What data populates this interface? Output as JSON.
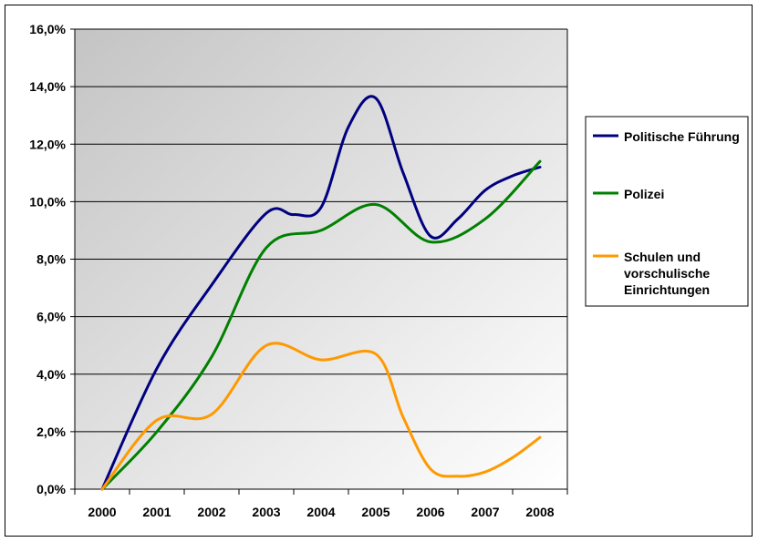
{
  "chart_data": {
    "type": "line",
    "categories": [
      "2000",
      "2001",
      "2002",
      "2003",
      "2004",
      "2005",
      "2006",
      "2007",
      "2008"
    ],
    "y_tick_labels": [
      "0,0%",
      "2,0%",
      "4,0%",
      "6,0%",
      "8,0%",
      "10,0%",
      "12,0%",
      "14,0%",
      "16,0%"
    ],
    "ylim": [
      0,
      16
    ],
    "grid": true,
    "legend_position": "right",
    "series": [
      {
        "name": "Politische Führung",
        "color": "#000080",
        "x": [
          2000,
          2001,
          2002,
          2003,
          2003.5,
          2004,
          2004.5,
          2005,
          2005.5,
          2006,
          2006.5,
          2007,
          2007.5,
          2008
        ],
        "values": [
          0.0,
          4.2,
          7.1,
          9.6,
          9.55,
          9.8,
          12.6,
          13.6,
          11.0,
          8.8,
          9.4,
          10.4,
          10.9,
          11.2
        ]
      },
      {
        "name": "Polizei",
        "color": "#008000",
        "x": [
          2000,
          2001,
          2002,
          2003,
          2004,
          2005,
          2006,
          2007,
          2008
        ],
        "values": [
          0.0,
          2.0,
          4.6,
          8.4,
          9.0,
          9.9,
          8.6,
          9.4,
          11.4
        ]
      },
      {
        "name": "Schulen und vorschulische Einrichtungen",
        "legend_lines": [
          "Schulen und",
          "vorschulische",
          "Einrichtungen"
        ],
        "color": "#FF9900",
        "x": [
          2000,
          2001,
          2002,
          2003,
          2004,
          2005,
          2005.5,
          2006,
          2006.5,
          2007,
          2007.5,
          2008
        ],
        "values": [
          0.0,
          2.4,
          2.6,
          5.0,
          4.5,
          4.7,
          2.5,
          0.7,
          0.45,
          0.6,
          1.1,
          1.8
        ]
      }
    ]
  },
  "legend": {
    "items": [
      "Politische Führung",
      "Polizei",
      "Schulen und vorschulische Einrichtungen"
    ]
  }
}
